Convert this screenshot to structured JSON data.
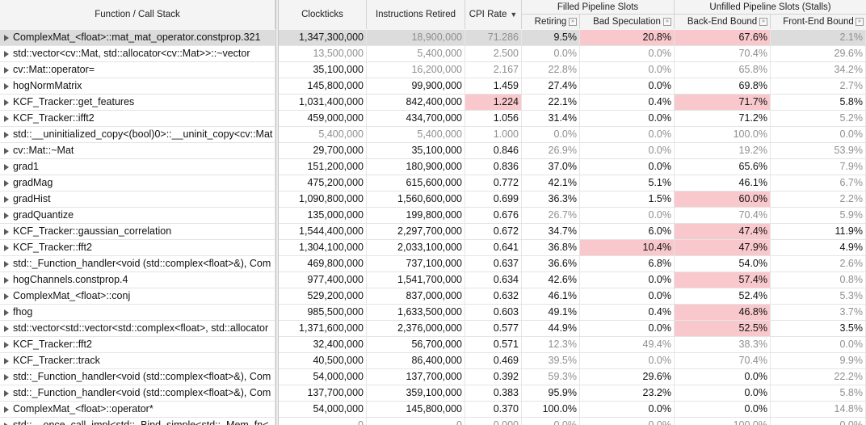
{
  "header": {
    "function": "Function / Call Stack",
    "clockticks": "Clockticks",
    "instructions": "Instructions Retired",
    "cpi": "CPI Rate",
    "cpi_sort": "▼",
    "filled_group": "Filled Pipeline Slots",
    "unfilled_group": "Unfilled Pipeline Slots (Stalls)",
    "retiring": "Retiring",
    "bad_spec": "Bad Speculation",
    "backend": "Back-End Bound",
    "frontend": "Front-End Bound"
  },
  "colors": {
    "highlight": "#f8c8cc",
    "selected": "#dcdcdc",
    "dim": "#8f8f8f"
  },
  "rows": [
    {
      "fn": "ComplexMat_<float>::mat_mat_operator.constprop.321",
      "clk": "1,347,300,000",
      "ins": "18,900,000",
      "cpi": "71.286",
      "ret": "9.5%",
      "bad": "20.8%",
      "be": "67.6%",
      "fe": "2.1%",
      "sel": true,
      "dim": [
        "ins",
        "cpi",
        "fe"
      ],
      "hl": [
        "bad",
        "be"
      ]
    },
    {
      "fn": "std::vector<cv::Mat, std::allocator<cv::Mat>>::~vector",
      "clk": "13,500,000",
      "ins": "5,400,000",
      "cpi": "2.500",
      "ret": "0.0%",
      "bad": "0.0%",
      "be": "70.4%",
      "fe": "29.6%",
      "dim": [
        "clk",
        "ins",
        "cpi",
        "ret",
        "bad",
        "be",
        "fe"
      ],
      "hl": []
    },
    {
      "fn": "cv::Mat::operator=",
      "clk": "35,100,000",
      "ins": "16,200,000",
      "cpi": "2.167",
      "ret": "22.8%",
      "bad": "0.0%",
      "be": "65.8%",
      "fe": "34.2%",
      "dim": [
        "ins",
        "cpi",
        "ret",
        "bad",
        "be",
        "fe"
      ],
      "hl": []
    },
    {
      "fn": "hogNormMatrix",
      "clk": "145,800,000",
      "ins": "99,900,000",
      "cpi": "1.459",
      "ret": "27.4%",
      "bad": "0.0%",
      "be": "69.8%",
      "fe": "2.7%",
      "dim": [
        "fe"
      ],
      "hl": []
    },
    {
      "fn": "KCF_Tracker::get_features",
      "clk": "1,031,400,000",
      "ins": "842,400,000",
      "cpi": "1.224",
      "ret": "22.1%",
      "bad": "0.4%",
      "be": "71.7%",
      "fe": "5.8%",
      "dim": [],
      "hl": [
        "cpi",
        "be"
      ]
    },
    {
      "fn": "KCF_Tracker::ifft2",
      "clk": "459,000,000",
      "ins": "434,700,000",
      "cpi": "1.056",
      "ret": "31.4%",
      "bad": "0.0%",
      "be": "71.2%",
      "fe": "5.2%",
      "dim": [
        "fe"
      ],
      "hl": []
    },
    {
      "fn": "std::__uninitialized_copy<(bool)0>::__uninit_copy<cv::Mat",
      "clk": "5,400,000",
      "ins": "5,400,000",
      "cpi": "1.000",
      "ret": "0.0%",
      "bad": "0.0%",
      "be": "100.0%",
      "fe": "0.0%",
      "dim": [
        "clk",
        "ins",
        "cpi",
        "ret",
        "bad",
        "be",
        "fe"
      ],
      "hl": []
    },
    {
      "fn": "cv::Mat::~Mat",
      "clk": "29,700,000",
      "ins": "35,100,000",
      "cpi": "0.846",
      "ret": "26.9%",
      "bad": "0.0%",
      "be": "19.2%",
      "fe": "53.9%",
      "dim": [
        "ret",
        "bad",
        "be",
        "fe"
      ],
      "hl": []
    },
    {
      "fn": "grad1",
      "clk": "151,200,000",
      "ins": "180,900,000",
      "cpi": "0.836",
      "ret": "37.0%",
      "bad": "0.0%",
      "be": "65.6%",
      "fe": "7.9%",
      "dim": [
        "fe"
      ],
      "hl": []
    },
    {
      "fn": "gradMag",
      "clk": "475,200,000",
      "ins": "615,600,000",
      "cpi": "0.772",
      "ret": "42.1%",
      "bad": "5.1%",
      "be": "46.1%",
      "fe": "6.7%",
      "dim": [
        "fe"
      ],
      "hl": []
    },
    {
      "fn": "gradHist",
      "clk": "1,090,800,000",
      "ins": "1,560,600,000",
      "cpi": "0.699",
      "ret": "36.3%",
      "bad": "1.5%",
      "be": "60.0%",
      "fe": "2.2%",
      "dim": [
        "fe"
      ],
      "hl": [
        "be"
      ]
    },
    {
      "fn": "gradQuantize",
      "clk": "135,000,000",
      "ins": "199,800,000",
      "cpi": "0.676",
      "ret": "26.7%",
      "bad": "0.0%",
      "be": "70.4%",
      "fe": "5.9%",
      "dim": [
        "ret",
        "bad",
        "be",
        "fe"
      ],
      "hl": []
    },
    {
      "fn": "KCF_Tracker::gaussian_correlation",
      "clk": "1,544,400,000",
      "ins": "2,297,700,000",
      "cpi": "0.672",
      "ret": "34.7%",
      "bad": "6.0%",
      "be": "47.4%",
      "fe": "11.9%",
      "dim": [],
      "hl": [
        "be"
      ]
    },
    {
      "fn": "KCF_Tracker::fft2",
      "clk": "1,304,100,000",
      "ins": "2,033,100,000",
      "cpi": "0.641",
      "ret": "36.8%",
      "bad": "10.4%",
      "be": "47.9%",
      "fe": "4.9%",
      "dim": [],
      "hl": [
        "bad",
        "be"
      ]
    },
    {
      "fn": "std::_Function_handler<void (std::complex<float>&), Com",
      "clk": "469,800,000",
      "ins": "737,100,000",
      "cpi": "0.637",
      "ret": "36.6%",
      "bad": "6.8%",
      "be": "54.0%",
      "fe": "2.6%",
      "dim": [
        "fe"
      ],
      "hl": []
    },
    {
      "fn": "hogChannels.constprop.4",
      "clk": "977,400,000",
      "ins": "1,541,700,000",
      "cpi": "0.634",
      "ret": "42.6%",
      "bad": "0.0%",
      "be": "57.4%",
      "fe": "0.8%",
      "dim": [
        "fe"
      ],
      "hl": [
        "be"
      ]
    },
    {
      "fn": "ComplexMat_<float>::conj",
      "clk": "529,200,000",
      "ins": "837,000,000",
      "cpi": "0.632",
      "ret": "46.1%",
      "bad": "0.0%",
      "be": "52.4%",
      "fe": "5.3%",
      "dim": [
        "fe"
      ],
      "hl": []
    },
    {
      "fn": "fhog",
      "clk": "985,500,000",
      "ins": "1,633,500,000",
      "cpi": "0.603",
      "ret": "49.1%",
      "bad": "0.4%",
      "be": "46.8%",
      "fe": "3.7%",
      "dim": [
        "fe"
      ],
      "hl": [
        "be"
      ]
    },
    {
      "fn": "std::vector<std::vector<std::complex<float>, std::allocator",
      "clk": "1,371,600,000",
      "ins": "2,376,000,000",
      "cpi": "0.577",
      "ret": "44.9%",
      "bad": "0.0%",
      "be": "52.5%",
      "fe": "3.5%",
      "dim": [],
      "hl": [
        "be"
      ]
    },
    {
      "fn": "KCF_Tracker::fft2",
      "clk": "32,400,000",
      "ins": "56,700,000",
      "cpi": "0.571",
      "ret": "12.3%",
      "bad": "49.4%",
      "be": "38.3%",
      "fe": "0.0%",
      "dim": [
        "ret",
        "bad",
        "be",
        "fe"
      ],
      "hl": []
    },
    {
      "fn": "KCF_Tracker::track",
      "clk": "40,500,000",
      "ins": "86,400,000",
      "cpi": "0.469",
      "ret": "39.5%",
      "bad": "0.0%",
      "be": "70.4%",
      "fe": "9.9%",
      "dim": [
        "ret",
        "bad",
        "be",
        "fe"
      ],
      "hl": []
    },
    {
      "fn": "std::_Function_handler<void (std::complex<float>&), Com",
      "clk": "54,000,000",
      "ins": "137,700,000",
      "cpi": "0.392",
      "ret": "59.3%",
      "bad": "29.6%",
      "be": "0.0%",
      "fe": "22.2%",
      "dim": [
        "ret",
        "fe"
      ],
      "hl": []
    },
    {
      "fn": "std::_Function_handler<void (std::complex<float>&), Com",
      "clk": "137,700,000",
      "ins": "359,100,000",
      "cpi": "0.383",
      "ret": "95.9%",
      "bad": "23.2%",
      "be": "0.0%",
      "fe": "5.8%",
      "dim": [
        "fe"
      ],
      "hl": []
    },
    {
      "fn": "ComplexMat_<float>::operator*",
      "clk": "54,000,000",
      "ins": "145,800,000",
      "cpi": "0.370",
      "ret": "100.0%",
      "bad": "0.0%",
      "be": "0.0%",
      "fe": "14.8%",
      "dim": [
        "fe"
      ],
      "hl": []
    },
    {
      "fn": "std::__once_call_impl<std::_Bind_simple<std::_Mem_fn<",
      "clk": "0",
      "ins": "0",
      "cpi": "0.000",
      "ret": "0.0%",
      "bad": "0.0%",
      "be": "100.0%",
      "fe": "0.0%",
      "dim": [
        "clk",
        "ins",
        "cpi",
        "ret",
        "bad",
        "be",
        "fe"
      ],
      "hl": []
    }
  ]
}
